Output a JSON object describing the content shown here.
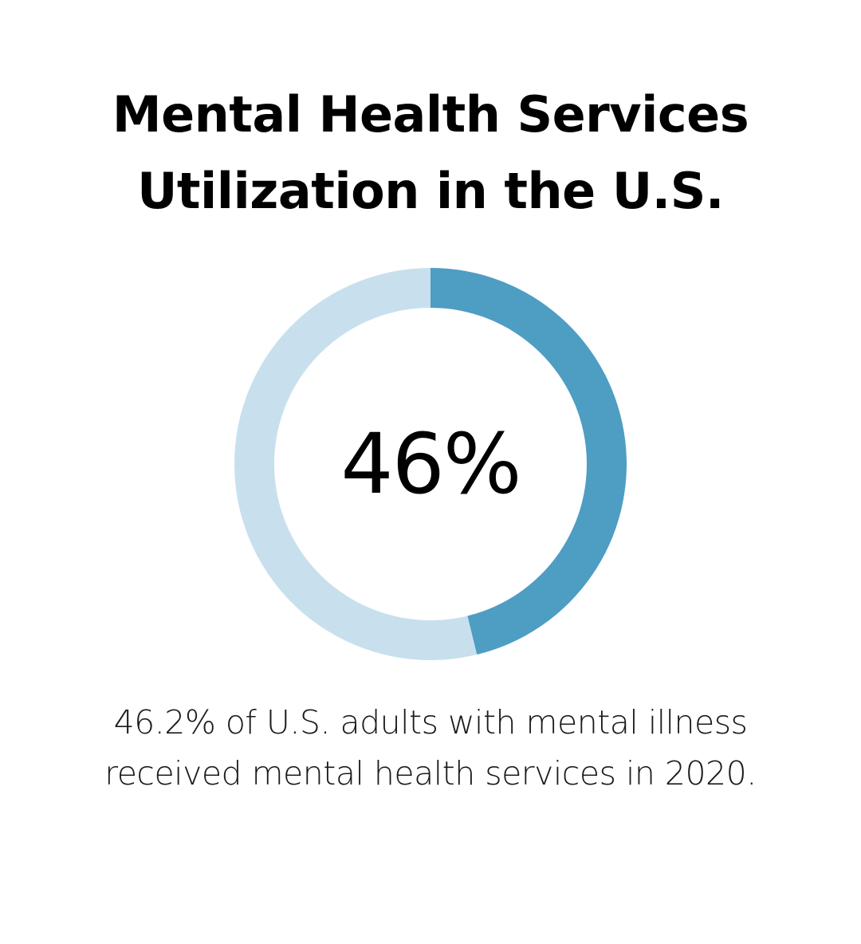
{
  "title": {
    "line1": "Mental Health Services",
    "line2": "Utilization in the U.S."
  },
  "chart_data": {
    "type": "pie",
    "style": "donut",
    "value_percent": 46.2,
    "center_label": "46%",
    "slices": [
      {
        "value": 46.2,
        "color": "#4e9dc3"
      },
      {
        "value": 53.8,
        "color": "#c8e0ed"
      }
    ]
  },
  "caption": {
    "line1": "46.2% of U.S. adults with mental illness",
    "line2": "received mental health services in 2020."
  }
}
